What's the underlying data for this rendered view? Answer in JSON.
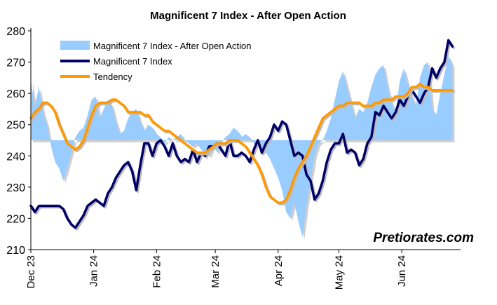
{
  "chart_data": {
    "type": "line",
    "title": "Magnificent  7 Index - After Open Action",
    "watermark": "Pretiorates.com",
    "ylim": [
      210,
      280
    ],
    "y_ticks": [
      "210",
      "220",
      "230",
      "240",
      "250",
      "260",
      "270",
      "280"
    ],
    "x_range": [
      "2023-12-01",
      "2024-06-30"
    ],
    "x_ticks": [
      {
        "label": "Dec 23",
        "date": "2023-12-01"
      },
      {
        "label": "Jan 24",
        "date": "2024-01-01"
      },
      {
        "label": "Feb 24",
        "date": "2024-02-01"
      },
      {
        "label": "Mar 24",
        "date": "2024-03-01"
      },
      {
        "label": "Apr 24",
        "date": "2024-04-01"
      },
      {
        "label": "May 24",
        "date": "2024-05-01"
      },
      {
        "label": "Jun 24",
        "date": "2024-06-01"
      }
    ],
    "area_baseline": 245,
    "legend": [
      "Magnificent  7 Index - After Open Action",
      "Magnificent 7 Index",
      "Tendency"
    ],
    "colors": {
      "after_open": "#99CCFF",
      "index": "#000066",
      "tendency": "#FF9900"
    },
    "series": [
      {
        "name": "Magnificent  7 Index - After Open Action",
        "style": "area",
        "x": [
          "2023-12-01",
          "2023-12-03",
          "2023-12-05",
          "2023-12-07",
          "2023-12-09",
          "2023-12-11",
          "2023-12-13",
          "2023-12-15",
          "2023-12-17",
          "2023-12-19",
          "2023-12-21",
          "2023-12-23",
          "2023-12-25",
          "2023-12-27",
          "2023-12-29",
          "2023-12-31",
          "2024-01-02",
          "2024-01-04",
          "2024-01-06",
          "2024-01-08",
          "2024-01-10",
          "2024-01-12",
          "2024-01-14",
          "2024-01-16",
          "2024-01-18",
          "2024-01-20",
          "2024-01-22",
          "2024-01-24",
          "2024-01-26",
          "2024-01-28",
          "2024-01-30",
          "2024-02-01",
          "2024-02-03",
          "2024-02-05",
          "2024-02-07",
          "2024-02-09",
          "2024-02-11",
          "2024-02-13",
          "2024-02-15",
          "2024-02-17",
          "2024-02-19",
          "2024-02-21",
          "2024-02-23",
          "2024-02-25",
          "2024-02-27",
          "2024-02-29",
          "2024-03-02",
          "2024-03-04",
          "2024-03-06",
          "2024-03-08",
          "2024-03-10",
          "2024-03-12",
          "2024-03-14",
          "2024-03-16",
          "2024-03-18",
          "2024-03-20",
          "2024-03-22",
          "2024-03-24",
          "2024-03-26",
          "2024-03-28",
          "2024-03-30",
          "2024-04-01",
          "2024-04-03",
          "2024-04-05",
          "2024-04-07",
          "2024-04-09",
          "2024-04-11",
          "2024-04-13",
          "2024-04-15",
          "2024-04-17",
          "2024-04-19",
          "2024-04-21",
          "2024-04-23",
          "2024-04-25",
          "2024-04-27",
          "2024-04-29",
          "2024-05-01",
          "2024-05-03",
          "2024-05-05",
          "2024-05-07",
          "2024-05-09",
          "2024-05-11",
          "2024-05-13",
          "2024-05-15",
          "2024-05-17",
          "2024-05-19",
          "2024-05-21",
          "2024-05-23",
          "2024-05-25",
          "2024-05-27",
          "2024-05-29",
          "2024-05-31",
          "2024-06-02",
          "2024-06-04",
          "2024-06-06",
          "2024-06-08",
          "2024-06-10",
          "2024-06-12",
          "2024-06-14",
          "2024-06-16",
          "2024-06-18",
          "2024-06-20",
          "2024-06-22",
          "2024-06-24",
          "2024-06-26"
        ],
        "values": [
          264,
          256,
          262,
          254,
          250,
          243,
          238,
          236,
          232,
          236,
          241,
          246,
          248,
          249,
          253,
          258,
          259,
          252,
          255,
          258,
          256,
          251,
          247,
          248,
          252,
          254,
          255,
          251,
          248,
          250,
          249,
          247,
          246,
          244,
          246,
          245,
          246,
          247,
          245,
          244,
          243,
          244,
          242,
          241,
          240,
          243,
          241,
          244,
          246,
          247,
          249,
          248,
          246,
          247,
          246,
          244,
          243,
          242,
          241,
          239,
          236,
          233,
          229,
          222,
          220,
          225,
          219,
          214,
          224,
          232,
          240,
          244,
          245,
          248,
          252,
          258,
          264,
          267,
          262,
          257,
          252,
          255,
          254,
          257,
          262,
          266,
          268,
          269,
          262,
          257,
          254,
          264,
          268,
          263,
          259,
          256,
          265,
          269,
          270,
          255,
          253,
          260,
          266,
          272,
          269
        ]
      },
      {
        "name": "Magnificent 7 Index",
        "style": "line",
        "x": [
          "2023-12-01",
          "2023-12-03",
          "2023-12-05",
          "2023-12-07",
          "2023-12-09",
          "2023-12-11",
          "2023-12-13",
          "2023-12-15",
          "2023-12-17",
          "2023-12-19",
          "2023-12-21",
          "2023-12-23",
          "2023-12-25",
          "2023-12-27",
          "2023-12-29",
          "2023-12-31",
          "2024-01-02",
          "2024-01-04",
          "2024-01-06",
          "2024-01-08",
          "2024-01-10",
          "2024-01-12",
          "2024-01-14",
          "2024-01-16",
          "2024-01-18",
          "2024-01-20",
          "2024-01-22",
          "2024-01-24",
          "2024-01-26",
          "2024-01-28",
          "2024-01-30",
          "2024-02-01",
          "2024-02-03",
          "2024-02-05",
          "2024-02-07",
          "2024-02-09",
          "2024-02-11",
          "2024-02-13",
          "2024-02-15",
          "2024-02-17",
          "2024-02-19",
          "2024-02-21",
          "2024-02-23",
          "2024-02-25",
          "2024-02-27",
          "2024-02-29",
          "2024-03-02",
          "2024-03-04",
          "2024-03-06",
          "2024-03-08",
          "2024-03-10",
          "2024-03-12",
          "2024-03-14",
          "2024-03-16",
          "2024-03-18",
          "2024-03-20",
          "2024-03-22",
          "2024-03-24",
          "2024-03-26",
          "2024-03-28",
          "2024-03-30",
          "2024-04-01",
          "2024-04-03",
          "2024-04-05",
          "2024-04-07",
          "2024-04-09",
          "2024-04-11",
          "2024-04-13",
          "2024-04-15",
          "2024-04-17",
          "2024-04-19",
          "2024-04-21",
          "2024-04-23",
          "2024-04-25",
          "2024-04-27",
          "2024-04-29",
          "2024-05-01",
          "2024-05-03",
          "2024-05-05",
          "2024-05-07",
          "2024-05-09",
          "2024-05-11",
          "2024-05-13",
          "2024-05-15",
          "2024-05-17",
          "2024-05-19",
          "2024-05-21",
          "2024-05-23",
          "2024-05-25",
          "2024-05-27",
          "2024-05-29",
          "2024-05-31",
          "2024-06-02",
          "2024-06-04",
          "2024-06-06",
          "2024-06-08",
          "2024-06-10",
          "2024-06-12",
          "2024-06-14",
          "2024-06-16",
          "2024-06-18",
          "2024-06-20",
          "2024-06-22",
          "2024-06-24",
          "2024-06-26"
        ],
        "values": [
          224,
          222,
          224,
          224,
          224,
          224,
          224,
          224,
          223,
          220,
          218,
          217,
          219,
          221,
          224,
          225,
          226,
          225,
          224,
          228,
          230,
          233,
          235,
          237,
          238,
          235,
          229,
          237,
          244,
          244,
          240,
          244,
          245,
          243,
          240,
          244,
          240,
          238,
          239,
          238,
          242,
          238,
          241,
          240,
          243,
          243,
          244,
          242,
          240,
          245,
          240,
          240,
          241,
          240,
          238,
          242,
          245,
          241,
          244,
          246,
          250,
          248,
          251,
          250,
          245,
          240,
          241,
          240,
          234,
          232,
          226,
          228,
          232,
          238,
          242,
          244,
          244,
          247,
          241,
          242,
          241,
          237,
          239,
          244,
          246,
          254,
          253,
          256,
          254,
          252,
          254,
          258,
          256,
          259,
          261,
          259,
          257,
          260,
          262,
          268,
          265,
          268,
          270,
          277,
          275
        ]
      },
      {
        "name": "Tendency",
        "style": "line",
        "x": [
          "2023-12-01",
          "2023-12-03",
          "2023-12-05",
          "2023-12-07",
          "2023-12-09",
          "2023-12-11",
          "2023-12-13",
          "2023-12-15",
          "2023-12-17",
          "2023-12-19",
          "2023-12-21",
          "2023-12-23",
          "2023-12-25",
          "2023-12-27",
          "2023-12-29",
          "2023-12-31",
          "2024-01-02",
          "2024-01-04",
          "2024-01-06",
          "2024-01-08",
          "2024-01-10",
          "2024-01-12",
          "2024-01-14",
          "2024-01-16",
          "2024-01-18",
          "2024-01-20",
          "2024-01-22",
          "2024-01-24",
          "2024-01-26",
          "2024-01-28",
          "2024-01-30",
          "2024-02-01",
          "2024-02-03",
          "2024-02-05",
          "2024-02-07",
          "2024-02-09",
          "2024-02-11",
          "2024-02-13",
          "2024-02-15",
          "2024-02-17",
          "2024-02-19",
          "2024-02-21",
          "2024-02-23",
          "2024-02-25",
          "2024-02-27",
          "2024-02-29",
          "2024-03-02",
          "2024-03-04",
          "2024-03-06",
          "2024-03-08",
          "2024-03-10",
          "2024-03-12",
          "2024-03-14",
          "2024-03-16",
          "2024-03-18",
          "2024-03-20",
          "2024-03-22",
          "2024-03-24",
          "2024-03-26",
          "2024-03-28",
          "2024-03-30",
          "2024-04-01",
          "2024-04-03",
          "2024-04-05",
          "2024-04-07",
          "2024-04-09",
          "2024-04-11",
          "2024-04-13",
          "2024-04-15",
          "2024-04-17",
          "2024-04-19",
          "2024-04-21",
          "2024-04-23",
          "2024-04-25",
          "2024-04-27",
          "2024-04-29",
          "2024-05-01",
          "2024-05-03",
          "2024-05-05",
          "2024-05-07",
          "2024-05-09",
          "2024-05-11",
          "2024-05-13",
          "2024-05-15",
          "2024-05-17",
          "2024-05-19",
          "2024-05-21",
          "2024-05-23",
          "2024-05-25",
          "2024-05-27",
          "2024-05-29",
          "2024-05-31",
          "2024-06-02",
          "2024-06-04",
          "2024-06-06",
          "2024-06-08",
          "2024-06-10",
          "2024-06-12",
          "2024-06-14",
          "2024-06-16",
          "2024-06-18",
          "2024-06-20",
          "2024-06-22",
          "2024-06-24",
          "2024-06-26"
        ],
        "values": [
          252,
          254,
          255,
          257,
          257,
          256,
          254,
          250,
          247,
          244,
          243,
          242,
          243,
          245,
          249,
          253,
          256,
          257,
          257,
          257,
          258,
          258,
          257,
          256,
          254,
          254,
          254,
          254,
          253,
          253,
          251,
          250,
          249,
          248,
          248,
          247,
          246,
          245,
          244,
          243,
          242,
          241,
          241,
          241,
          242,
          243,
          244,
          244,
          244,
          245,
          245,
          245,
          244,
          243,
          241,
          239,
          237,
          234,
          230,
          227,
          226,
          225,
          225,
          226,
          229,
          233,
          236,
          238,
          240,
          243,
          246,
          249,
          252,
          253,
          254,
          255,
          256,
          256,
          257,
          257,
          257,
          257,
          256,
          256,
          256,
          257,
          257,
          258,
          258,
          258,
          259,
          259,
          259,
          260,
          262,
          262,
          263,
          262,
          262,
          261,
          261,
          261,
          261,
          261,
          261
        ]
      }
    ]
  }
}
